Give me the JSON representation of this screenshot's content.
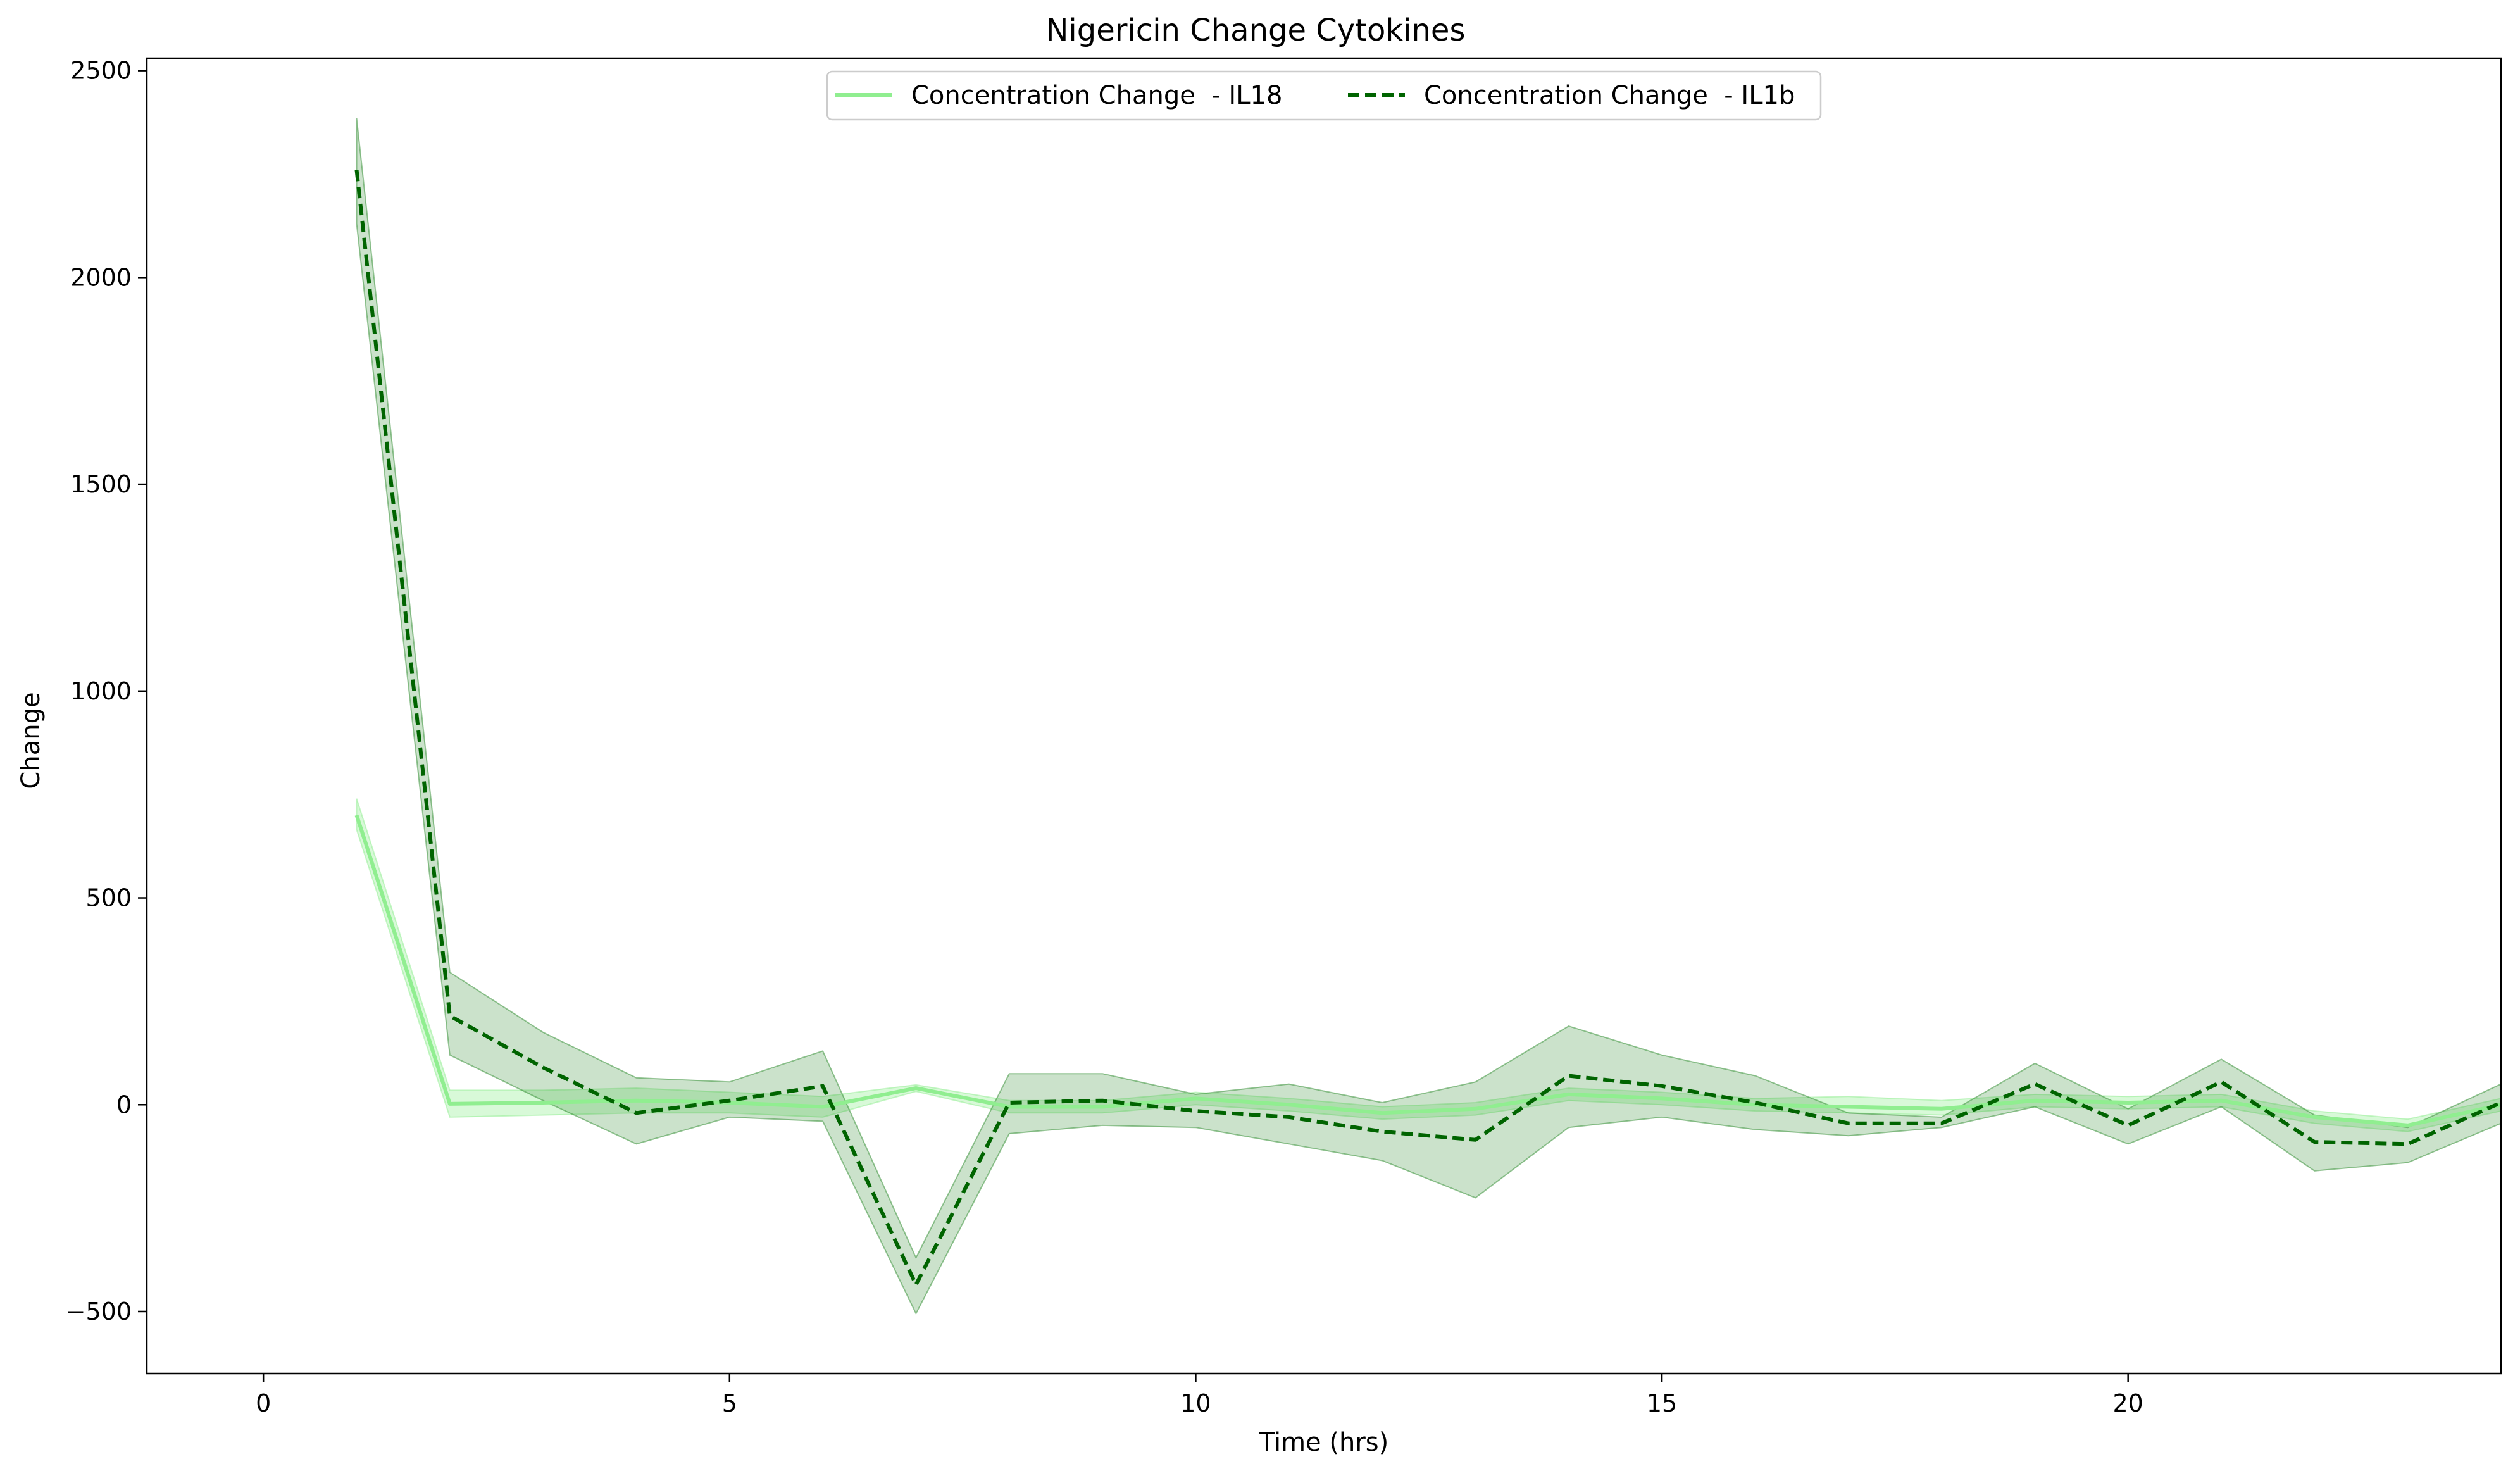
{
  "chart_data": {
    "type": "line",
    "title": "Nigericin Change Cytokines",
    "xlabel": "Time (hrs)",
    "ylabel": "Change",
    "xlim": [
      -1.25,
      24
    ],
    "ylim": [
      -650,
      2530
    ],
    "xticks": [
      0,
      5,
      10,
      15,
      20
    ],
    "yticks": [
      -500,
      0,
      500,
      1000,
      1500,
      2000,
      2500
    ],
    "xtick_labels": [
      "0",
      "5",
      "10",
      "15",
      "20"
    ],
    "ytick_labels": [
      "−500",
      "0",
      "500",
      "1000",
      "1500",
      "2000",
      "2500"
    ],
    "legend_position": "upper center",
    "grid": false,
    "x": [
      1,
      2,
      3,
      4,
      5,
      6,
      7,
      8,
      9,
      10,
      11,
      12,
      13,
      14,
      15,
      16,
      17,
      18,
      19,
      20,
      21,
      22,
      23,
      24
    ],
    "series": [
      {
        "name": "Concentration Change  - IL18",
        "color": "#90ee90",
        "style": "solid",
        "values": [
          700,
          2,
          5,
          10,
          5,
          -5,
          40,
          -5,
          -5,
          15,
          0,
          -20,
          -10,
          25,
          15,
          0,
          -5,
          -10,
          10,
          5,
          10,
          -30,
          -50,
          0
        ],
        "lower": [
          665,
          -30,
          -25,
          -20,
          -20,
          -30,
          32,
          -20,
          -20,
          0,
          -15,
          -35,
          -25,
          10,
          0,
          -15,
          -20,
          -25,
          -5,
          -10,
          -5,
          -45,
          -65,
          -15
        ],
        "upper": [
          740,
          35,
          35,
          40,
          30,
          20,
          48,
          10,
          10,
          30,
          15,
          -5,
          5,
          40,
          30,
          15,
          20,
          10,
          25,
          20,
          25,
          -15,
          -35,
          15
        ]
      },
      {
        "name": "Concentration Change  - IL1b",
        "color": "#006400",
        "style": "dashed",
        "values": [
          2260,
          215,
          90,
          -20,
          10,
          45,
          -435,
          5,
          10,
          -15,
          -30,
          -65,
          -85,
          70,
          45,
          5,
          -45,
          -45,
          50,
          -50,
          55,
          -90,
          -95,
          5
        ],
        "lower": [
          2130,
          120,
          10,
          -95,
          -30,
          -40,
          -505,
          -70,
          -50,
          -55,
          -95,
          -135,
          -225,
          -55,
          -30,
          -60,
          -75,
          -55,
          -5,
          -95,
          -5,
          -160,
          -140,
          -45
        ],
        "upper": [
          2385,
          320,
          175,
          65,
          55,
          130,
          -370,
          75,
          75,
          25,
          50,
          5,
          55,
          190,
          120,
          70,
          -20,
          -30,
          100,
          -10,
          110,
          -25,
          -55,
          50
        ]
      }
    ]
  }
}
